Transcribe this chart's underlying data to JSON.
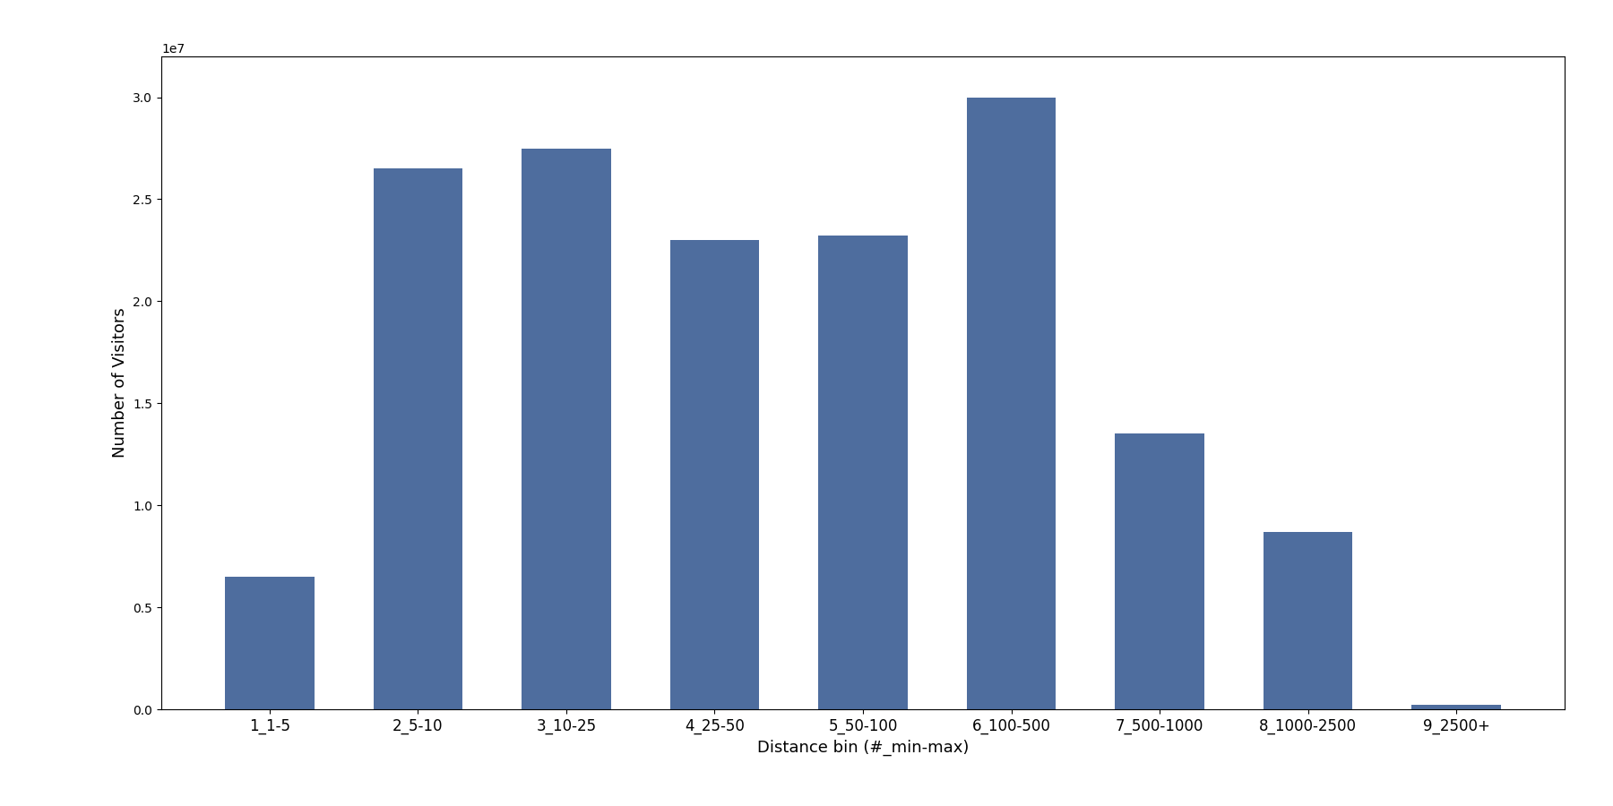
{
  "categories": [
    "1_1-5",
    "2_5-10",
    "3_10-25",
    "4_25-50",
    "5_50-100",
    "6_100-500",
    "7_500-1000",
    "8_1000-2500",
    "9_2500+"
  ],
  "values": [
    6500000,
    26500000,
    27500000,
    23000000,
    23200000,
    30000000,
    13500000,
    8700000,
    200000
  ],
  "bar_color": "#4e6d9e",
  "xlabel": "Distance bin (#_min-max)",
  "ylabel": "Number of Visitors",
  "ylim": [
    0,
    32000000
  ],
  "figsize": [
    18.0,
    9.0
  ],
  "dpi": 100,
  "bar_width": 0.6,
  "tick_fontsize": 12,
  "label_fontsize": 13
}
